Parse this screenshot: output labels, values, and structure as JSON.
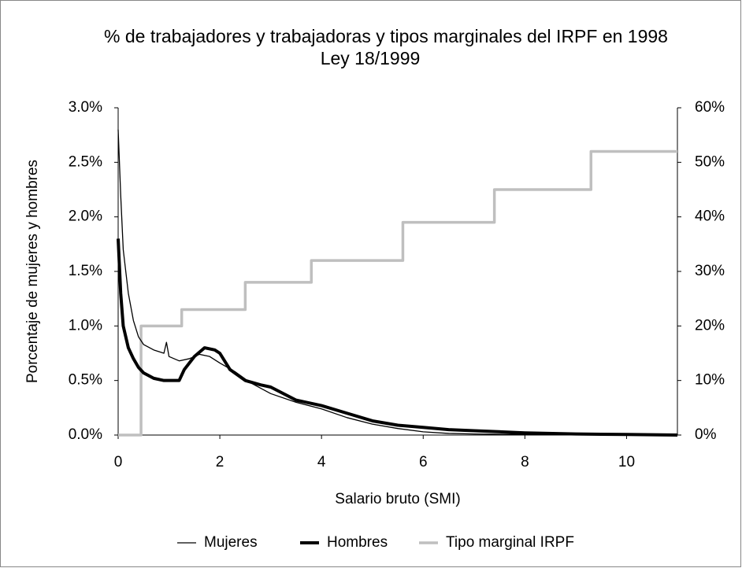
{
  "chart_data": {
    "type": "line",
    "title": "% de trabajadores y trabajadoras y tipos marginales del IRPF en 1998",
    "subtitle": "Ley 18/1999",
    "x_label": "Salario bruto (SMI)",
    "y_label": "Porcentaje de mujeres y hombres",
    "xlim": [
      0,
      11
    ],
    "xticks": [
      0,
      2,
      4,
      6,
      8,
      10
    ],
    "ylim": [
      0,
      3
    ],
    "yticks": [
      {
        "value": 0,
        "label": "0.0%"
      },
      {
        "value": 0.5,
        "label": "0.5%"
      },
      {
        "value": 1,
        "label": "1.0%"
      },
      {
        "value": 1.5,
        "label": "1.5%"
      },
      {
        "value": 2,
        "label": "2.0%"
      },
      {
        "value": 2.5,
        "label": "2.5%"
      },
      {
        "value": 3,
        "label": "3.0%"
      }
    ],
    "y2lim": [
      0,
      60
    ],
    "y2ticks": [
      {
        "value": 0,
        "label": "0%"
      },
      {
        "value": 10,
        "label": "10%"
      },
      {
        "value": 20,
        "label": "20%"
      },
      {
        "value": 30,
        "label": "30%"
      },
      {
        "value": 40,
        "label": "40%"
      },
      {
        "value": 50,
        "label": "50%"
      },
      {
        "value": 60,
        "label": "60%"
      }
    ],
    "legend": "bottom",
    "series": [
      {
        "name": "Mujeres",
        "color": "#000000",
        "width": 1.3,
        "x": [
          0,
          0.05,
          0.1,
          0.2,
          0.3,
          0.4,
          0.5,
          0.7,
          0.9,
          0.95,
          1.0,
          1.2,
          1.4,
          1.6,
          1.8,
          2.0,
          2.3,
          2.6,
          3.0,
          3.5,
          4.0,
          4.5,
          5.0,
          5.5,
          6.0,
          6.5,
          7,
          8,
          9,
          10,
          11
        ],
        "values": [
          2.8,
          2.2,
          1.7,
          1.3,
          1.05,
          0.9,
          0.83,
          0.78,
          0.75,
          0.85,
          0.72,
          0.68,
          0.7,
          0.74,
          0.72,
          0.66,
          0.58,
          0.48,
          0.38,
          0.3,
          0.24,
          0.16,
          0.1,
          0.06,
          0.03,
          0.015,
          0.01,
          0.005,
          0.002,
          0.001,
          0
        ]
      },
      {
        "name": "Hombres",
        "color": "#000000",
        "width": 4,
        "x": [
          0,
          0.05,
          0.1,
          0.2,
          0.3,
          0.4,
          0.5,
          0.7,
          0.9,
          1.2,
          1.3,
          1.5,
          1.7,
          1.9,
          2.0,
          2.2,
          2.5,
          2.8,
          3.0,
          3.5,
          4.0,
          4.5,
          5.0,
          5.5,
          6.0,
          6.5,
          7.0,
          8.0,
          9,
          10,
          11
        ],
        "values": [
          1.8,
          1.3,
          1.0,
          0.8,
          0.7,
          0.62,
          0.57,
          0.52,
          0.5,
          0.5,
          0.6,
          0.72,
          0.8,
          0.78,
          0.75,
          0.6,
          0.5,
          0.46,
          0.44,
          0.32,
          0.27,
          0.2,
          0.13,
          0.09,
          0.07,
          0.05,
          0.04,
          0.02,
          0.01,
          0.005,
          0
        ]
      },
      {
        "name": "Tipo marginal IRPF",
        "color": "#bfbfbf",
        "width": 3.5,
        "axis": "y2",
        "x": [
          0,
          0.45,
          0.45,
          1.25,
          1.25,
          2.5,
          2.5,
          3.8,
          3.8,
          5.6,
          5.6,
          7.4,
          7.4,
          9.3,
          9.3,
          11
        ],
        "values": [
          0,
          0,
          20,
          20,
          23,
          23,
          28,
          28,
          32,
          32,
          39,
          39,
          45,
          45,
          52,
          52
        ]
      }
    ]
  }
}
